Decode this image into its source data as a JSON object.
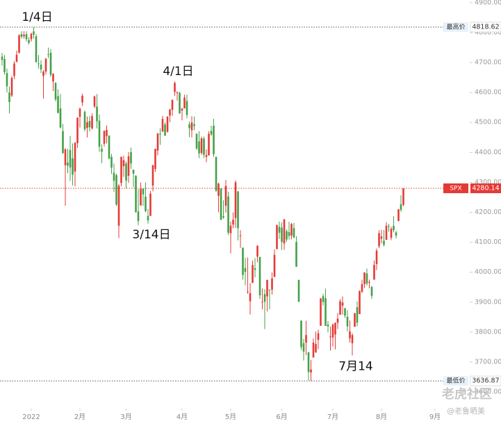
{
  "chart_data": {
    "type": "candlestick",
    "series": [
      {
        "name": "SPX",
        "up_color": "#e53935",
        "down_color": "#43a047",
        "open": [
          4720,
          4712,
          4665,
          4600,
          4590,
          4655,
          4703,
          4733,
          4795,
          4788,
          4795,
          4775,
          4778,
          4804,
          4788,
          4697,
          4693,
          4655,
          4670,
          4728,
          4733,
          4637,
          4632,
          4588,
          4547,
          4471,
          4357,
          4366,
          4408,
          4380,
          4336,
          4431,
          4519,
          4567,
          4535,
          4482,
          4505,
          4480,
          4553,
          4553,
          4506,
          4412,
          4429,
          4455,
          4456,
          4385,
          4332,
          4324,
          4155,
          4298,
          4354,
          4363,
          4322,
          4401,
          4342,
          4322,
          4203,
          4223,
          4279,
          4252,
          4188,
          4188,
          4289,
          4345,
          4406,
          4462,
          4469,
          4493,
          4469,
          4523,
          4542,
          4602,
          4599,
          4599,
          4540,
          4547,
          4572,
          4494,
          4474,
          4494,
          4462,
          4437,
          4398,
          4446,
          4385,
          4390,
          4472,
          4489,
          4385,
          4255,
          4279,
          4187,
          4222,
          4253,
          4130,
          4159,
          4181,
          4270,
          4122,
          4082,
          4014,
          3935,
          3903,
          3964,
          4013,
          4052,
          4051,
          3900,
          3927,
          3919,
          3942,
          3942,
          3984,
          4077,
          4151,
          4149,
          4096,
          4137,
          4134,
          4122,
          4147,
          4101,
          3974,
          3838,
          3763,
          3765,
          3733,
          3665,
          3715,
          3733,
          3774,
          3821,
          3920,
          3913,
          3825,
          3785,
          3782,
          3792,
          3831,
          3858,
          3888,
          3880,
          3851,
          3779,
          3763,
          3818,
          3883,
          3860,
          3935,
          3960,
          3996,
          3965,
          3951,
          3975,
          4027,
          4087,
          4112,
          4105,
          4108,
          4154,
          4115,
          4155,
          4133,
          4171,
          4227,
          4225
        ],
        "high": [
          4732,
          4725,
          4680,
          4620,
          4655,
          4705,
          4740,
          4795,
          4805,
          4805,
          4805,
          4785,
          4800,
          4818.62,
          4795,
          4725,
          4708,
          4675,
          4715,
          4750,
          4745,
          4665,
          4635,
          4611,
          4595,
          4495,
          4415,
          4412,
          4455,
          4430,
          4435,
          4517,
          4550,
          4596,
          4540,
          4520,
          4522,
          4530,
          4590,
          4595,
          4527,
          4427,
          4473,
          4490,
          4457,
          4395,
          4363,
          4329,
          4294,
          4386,
          4389,
          4370,
          4401,
          4416,
          4343,
          4324,
          4277,
          4299,
          4279,
          4300,
          4211,
          4271,
          4358,
          4412,
          4465,
          4481,
          4522,
          4501,
          4520,
          4546,
          4576,
          4637,
          4603,
          4602,
          4549,
          4593,
          4593,
          4503,
          4521,
          4520,
          4464,
          4471,
          4453,
          4453,
          4410,
          4471,
          4489,
          4512,
          4386,
          4299,
          4280,
          4240,
          4308,
          4269,
          4169,
          4200,
          4307,
          4270,
          4140,
          4082,
          4048,
          4049,
          3964,
          4039,
          4047,
          4090,
          4051,
          3946,
          3943,
          3975,
          3942,
          3999,
          4076,
          4158,
          4169,
          4166,
          4178,
          4143,
          4168,
          4164,
          4165,
          4120,
          3975,
          3839,
          3777,
          3838,
          3733,
          3707,
          3779,
          3802,
          3808,
          3914,
          3928,
          3945,
          3837,
          3818,
          3829,
          3832,
          3864,
          3910,
          3919,
          3880,
          3873,
          3839,
          3796,
          3864,
          3902,
          3939,
          3975,
          4000,
          4012,
          3975,
          3954,
          4039,
          4079,
          4140,
          4141,
          4141,
          4167,
          4161,
          4152,
          4187,
          4138,
          4211,
          4257,
          4280.14
        ],
        "low": [
          4690,
          4660,
          4600,
          4530,
          4585,
          4645,
          4700,
          4730,
          4780,
          4780,
          4770,
          4760,
          4770,
          4780,
          4700,
          4680,
          4665,
          4580,
          4660,
          4715,
          4652,
          4605,
          4570,
          4530,
          4480,
          4395,
          4222,
          4330,
          4305,
          4290,
          4287,
          4415,
          4483,
          4555,
          4470,
          4450,
          4470,
          4476,
          4548,
          4480,
          4402,
          4364,
          4420,
          4430,
          4376,
          4328,
          4268,
          4221,
          4114,
          4287,
          4318,
          4280,
          4298,
          4345,
          4284,
          4198,
          4157,
          4222,
          4222,
          4200,
          4162,
          4188,
          4270,
          4335,
          4390,
          4425,
          4469,
          4455,
          4466,
          4501,
          4522,
          4589,
          4573,
          4530,
          4507,
          4547,
          4514,
          4451,
          4450,
          4474,
          4408,
          4381,
          4392,
          4381,
          4367,
          4390,
          4455,
          4385,
          4268,
          4200,
          4174,
          4178,
          4199,
          4124,
          4063,
          4147,
          4148,
          4106,
          4081,
          3975,
          3956,
          3928,
          3859,
          3964,
          3983,
          4033,
          3911,
          3876,
          3810,
          3869,
          3876,
          3925,
          3984,
          4077,
          4111,
          4074,
          4075,
          4101,
          4109,
          4110,
          4113,
          4018,
          3901,
          3740,
          3705,
          3723,
          3639,
          3636.87,
          3715,
          3730,
          3743,
          3821,
          3889,
          3820,
          3799,
          3738,
          3752,
          3742,
          3810,
          3858,
          3858,
          3847,
          3802,
          3765,
          3722,
          3817,
          3819,
          3860,
          3930,
          3947,
          3955,
          3946,
          3911,
          3975,
          4007,
          4080,
          4096,
          4086,
          4108,
          4135,
          4107,
          4133,
          4113,
          4170,
          4201,
          4220
        ],
        "close": [
          4709,
          4668,
          4621,
          4568,
          4649,
          4697,
          4726,
          4791,
          4786,
          4793,
          4778,
          4766,
          4796,
          4793,
          4701,
          4696,
          4677,
          4670,
          4713,
          4726,
          4659,
          4662,
          4577,
          4532,
          4483,
          4398,
          4410,
          4356,
          4350,
          4326,
          4432,
          4516,
          4546,
          4589,
          4477,
          4501,
          4484,
          4521,
          4587,
          4504,
          4419,
          4402,
          4472,
          4475,
          4380,
          4349,
          4305,
          4226,
          4289,
          4385,
          4374,
          4306,
          4387,
          4363,
          4329,
          4201,
          4171,
          4278,
          4260,
          4204,
          4173,
          4262,
          4358,
          4412,
          4463,
          4461,
          4512,
          4456,
          4520,
          4543,
          4576,
          4632,
          4602,
          4530,
          4546,
          4583,
          4525,
          4481,
          4500,
          4488,
          4413,
          4397,
          4447,
          4392,
          4391,
          4462,
          4460,
          4394,
          4272,
          4296,
          4175,
          4183,
          4288,
          4132,
          4155,
          4175,
          4300,
          4147,
          4123,
          3991,
          4001,
          3935,
          3930,
          4024,
          4008,
          4088,
          3923,
          3901,
          3901,
          3974,
          3941,
          3979,
          4058,
          4158,
          4132,
          4101,
          4176,
          4109,
          4121,
          4161,
          4116,
          4018,
          3901,
          3750,
          3735,
          3790,
          3667,
          3675,
          3765,
          3760,
          3796,
          3912,
          3900,
          3821,
          3819,
          3785,
          3825,
          3831,
          3845,
          3903,
          3899,
          3855,
          3819,
          3802,
          3790,
          3863,
          3831,
          3937,
          3960,
          3999,
          3962,
          3967,
          3921,
          4024,
          4072,
          4130,
          4119,
          4091,
          4155,
          4152,
          4145,
          4140,
          4122,
          4210,
          4208,
          4280
        ]
      }
    ],
    "xlim": [
      -0.86,
      182
    ],
    "xticks": [
      {
        "value": 12,
        "label": "2022"
      },
      {
        "value": 32,
        "label": "2月"
      },
      {
        "value": 51,
        "label": "3月"
      },
      {
        "value": 74,
        "label": "4月"
      },
      {
        "value": 94,
        "label": "5月"
      },
      {
        "value": 115,
        "label": "6月"
      },
      {
        "value": 136,
        "label": "7月"
      },
      {
        "value": 156,
        "label": "8月"
      },
      {
        "value": 178,
        "label": "9月"
      }
    ],
    "ylim": [
      3549,
      4909
    ],
    "yticks": [
      {
        "value": 3600,
        "label": "3600.00"
      },
      {
        "value": 3700,
        "label": "3700.00"
      },
      {
        "value": 3800,
        "label": "3800.00"
      },
      {
        "value": 3900,
        "label": "3900.00"
      },
      {
        "value": 4000,
        "label": "4000.00"
      },
      {
        "value": 4100,
        "label": "4100.00"
      },
      {
        "value": 4200,
        "label": "4200.00"
      },
      {
        "value": 4300,
        "label": "4300.00"
      },
      {
        "value": 4400,
        "label": "4400.00"
      },
      {
        "value": 4500,
        "label": "4500.00"
      },
      {
        "value": 4600,
        "label": "4600.00"
      },
      {
        "value": 4700,
        "label": "4700.00"
      },
      {
        "value": 4800,
        "label": "4800.00"
      },
      {
        "value": 4900,
        "label": "4900.00"
      }
    ],
    "reference_lines": [
      {
        "label": "最高价",
        "value": 4818.62,
        "color": "#555555"
      },
      {
        "label": "SPX",
        "value": 4280.14,
        "color": "#e53935"
      },
      {
        "label": "最低价",
        "value": 3636.87,
        "color": "#555555"
      }
    ],
    "annotations": [
      {
        "text": "1/4日",
        "index": 13,
        "side": "above"
      },
      {
        "text": "4/1日",
        "index": 71,
        "side": "above"
      },
      {
        "text": "3/14日",
        "index": 60,
        "side": "below"
      },
      {
        "text": "7月14",
        "index": 144,
        "side": "below"
      }
    ],
    "watermark": [
      "老虎社区",
      "@老鲁晒美"
    ]
  }
}
